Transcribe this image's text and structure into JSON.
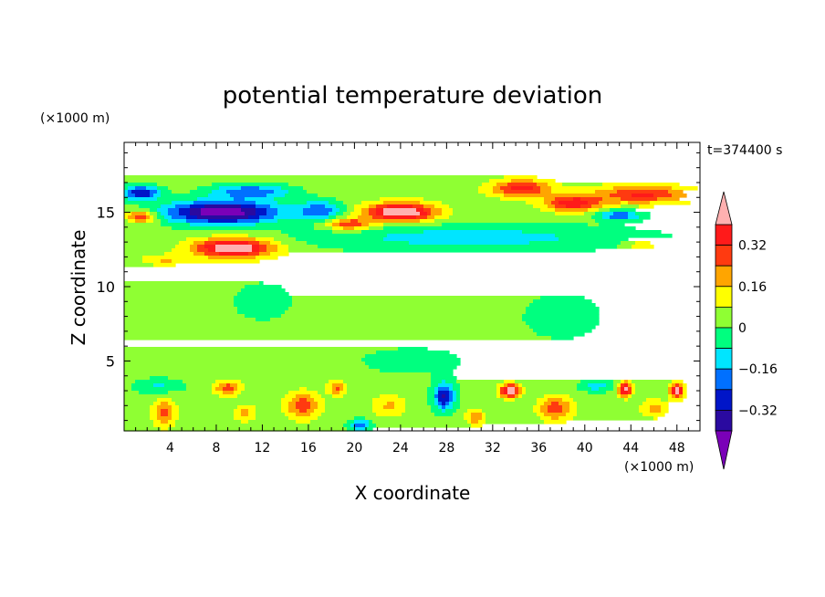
{
  "chart_data": {
    "type": "heatmap",
    "title": "potential temperature deviation",
    "xlabel": "X coordinate",
    "ylabel": "Z coordinate",
    "x_unit": "(×1000 m)",
    "y_unit": "(×1000 m)",
    "time_label": "t=374400 s",
    "xlim": [
      0,
      50
    ],
    "ylim": [
      0.3,
      19.7
    ],
    "x_ticks": [
      4,
      8,
      12,
      16,
      20,
      24,
      28,
      32,
      36,
      40,
      44,
      48
    ],
    "y_ticks": [
      5,
      10,
      15
    ],
    "colorbar": {
      "tick_labels": [
        "0.32",
        "0.16",
        "0",
        "-0.16",
        "-0.32"
      ],
      "tick_values": [
        0.32,
        0.16,
        0,
        -0.16,
        -0.32
      ],
      "levels": [
        -0.4,
        -0.32,
        -0.24,
        -0.16,
        -0.08,
        0,
        0.08,
        0.16,
        0.24,
        0.32,
        0.4
      ],
      "colors": [
        "#7a00b8",
        "#2a0aa0",
        "#0015c8",
        "#0070ff",
        "#00e5ff",
        "#00ff7f",
        "#8fff33",
        "#ffff00",
        "#ffa500",
        "#ff3a10",
        "#ff1a1a",
        "#ffb0b0"
      ]
    },
    "background_value": 0.03,
    "features": [
      {
        "x": 25,
        "z": 17.2,
        "sx": 20,
        "sz": 2.0,
        "v": 0.02
      },
      {
        "x": 11,
        "z": 16.4,
        "sx": 3.5,
        "sz": 0.5,
        "v": -0.26
      },
      {
        "x": 1.5,
        "z": 16.3,
        "sx": 1.6,
        "sz": 0.45,
        "v": -0.36
      },
      {
        "x": 8.5,
        "z": 15.0,
        "sx": 4.8,
        "sz": 0.75,
        "v": -0.52
      },
      {
        "x": 17,
        "z": 15.1,
        "sx": 2.0,
        "sz": 0.7,
        "v": -0.24
      },
      {
        "x": 1.5,
        "z": 14.7,
        "sx": 1.3,
        "sz": 0.4,
        "v": 0.3
      },
      {
        "x": 24,
        "z": 15.0,
        "sx": 3.0,
        "sz": 0.6,
        "v": 0.5
      },
      {
        "x": 19.5,
        "z": 14.2,
        "sx": 2.0,
        "sz": 0.4,
        "v": 0.3
      },
      {
        "x": 34.5,
        "z": 16.6,
        "sx": 2.5,
        "sz": 0.55,
        "v": 0.32
      },
      {
        "x": 39,
        "z": 15.6,
        "sx": 2.5,
        "sz": 0.55,
        "v": 0.34
      },
      {
        "x": 45,
        "z": 16.2,
        "sx": 4.0,
        "sz": 0.6,
        "v": 0.3
      },
      {
        "x": 43,
        "z": 14.8,
        "sx": 1.8,
        "sz": 0.35,
        "v": -0.26
      },
      {
        "x": 30,
        "z": 13.3,
        "sx": 14,
        "sz": 0.85,
        "v": -0.15
      },
      {
        "x": 9.5,
        "z": 12.6,
        "sx": 3.5,
        "sz": 0.65,
        "v": 0.48
      },
      {
        "x": 3.5,
        "z": 11.8,
        "sx": 2.0,
        "sz": 0.35,
        "v": 0.14
      },
      {
        "x": 45,
        "z": 12.8,
        "sx": 1.5,
        "sz": 0.4,
        "v": 0.12
      },
      {
        "x": 12,
        "z": 9.0,
        "sx": 3.0,
        "sz": 1.5,
        "v": -0.06
      },
      {
        "x": 38,
        "z": 8.0,
        "sx": 4.0,
        "sz": 1.8,
        "v": -0.06
      },
      {
        "x": 25,
        "z": 5.0,
        "sx": 6.0,
        "sz": 1.2,
        "v": -0.05
      },
      {
        "x": 3,
        "z": 3.3,
        "sx": 2.0,
        "sz": 0.5,
        "v": -0.12
      },
      {
        "x": 3.5,
        "z": 1.5,
        "sx": 1.0,
        "sz": 0.9,
        "v": 0.24
      },
      {
        "x": 9,
        "z": 3.2,
        "sx": 1.2,
        "sz": 0.5,
        "v": 0.24
      },
      {
        "x": 10.5,
        "z": 1.5,
        "sx": 1.0,
        "sz": 0.6,
        "v": 0.15
      },
      {
        "x": 15.5,
        "z": 2.0,
        "sx": 1.5,
        "sz": 0.9,
        "v": 0.26
      },
      {
        "x": 18.5,
        "z": 3.2,
        "sx": 0.8,
        "sz": 0.5,
        "v": 0.22
      },
      {
        "x": 20.5,
        "z": 0.7,
        "sx": 1.0,
        "sz": 0.35,
        "v": -0.24
      },
      {
        "x": 23,
        "z": 2.0,
        "sx": 1.5,
        "sz": 0.8,
        "v": 0.14
      },
      {
        "x": 27.8,
        "z": 2.6,
        "sx": 0.9,
        "sz": 0.9,
        "v": -0.36
      },
      {
        "x": 30.5,
        "z": 1.2,
        "sx": 0.8,
        "sz": 0.5,
        "v": 0.2
      },
      {
        "x": 33.5,
        "z": 3.0,
        "sx": 0.9,
        "sz": 0.45,
        "v": 0.46
      },
      {
        "x": 37.5,
        "z": 1.8,
        "sx": 1.5,
        "sz": 0.8,
        "v": 0.26
      },
      {
        "x": 43.5,
        "z": 3.1,
        "sx": 0.6,
        "sz": 0.5,
        "v": 0.42
      },
      {
        "x": 48,
        "z": 3.0,
        "sx": 0.6,
        "sz": 0.5,
        "v": 0.45
      },
      {
        "x": 46,
        "z": 1.8,
        "sx": 1.2,
        "sz": 0.6,
        "v": 0.16
      },
      {
        "x": 41,
        "z": 3.3,
        "sx": 1.5,
        "sz": 0.4,
        "v": -0.14
      }
    ]
  }
}
